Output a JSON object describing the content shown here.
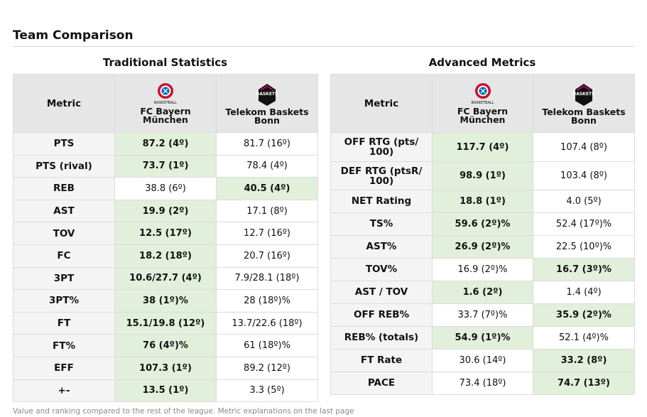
{
  "title": "Team Comparison",
  "footnote": "Value and ranking compared to the rest of the league. Metric explanations on the last page",
  "colors": {
    "highlight": "#e2efdb",
    "header": "#e6e6e6",
    "metric_bg": "#f4f4f4"
  },
  "traditional": {
    "title": "Traditional Statistics",
    "metric_header": "Metric",
    "team1": {
      "name": "FC Bayern München",
      "logo_caption": "BASKETBALL",
      "logo_icon": "fc-bayern-logo"
    },
    "team2": {
      "name": "Telekom Baskets Bonn",
      "logo_caption": "BASKETS",
      "logo_icon": "telekom-baskets-logo"
    },
    "rows": [
      {
        "metric": "PTS",
        "t1": "87.2 (4º)",
        "t2": "81.7 (16º)",
        "best": 1
      },
      {
        "metric": "PTS (rival)",
        "t1": "73.7 (1º)",
        "t2": "78.4 (4º)",
        "best": 1
      },
      {
        "metric": "REB",
        "t1": "38.8 (6º)",
        "t2": "40.5 (4º)",
        "best": 2
      },
      {
        "metric": "AST",
        "t1": "19.9 (2º)",
        "t2": "17.1 (8º)",
        "best": 1
      },
      {
        "metric": "TOV",
        "t1": "12.5 (17º)",
        "t2": "12.7 (16º)",
        "best": 1
      },
      {
        "metric": "FC",
        "t1": "18.2 (18º)",
        "t2": "20.7 (16º)",
        "best": 1
      },
      {
        "metric": "3PT",
        "t1": "10.6/27.7 (4º)",
        "t2": "7.9/28.1 (18º)",
        "best": 1
      },
      {
        "metric": "3PT%",
        "t1": "38 (1º)%",
        "t2": "28 (18º)%",
        "best": 1
      },
      {
        "metric": "FT",
        "t1": "15.1/19.8 (12º)",
        "t2": "13.7/22.6 (18º)",
        "best": 1
      },
      {
        "metric": "FT%",
        "t1": "76 (4º)%",
        "t2": "61 (18º)%",
        "best": 1
      },
      {
        "metric": "EFF",
        "t1": "107.3 (1º)",
        "t2": "89.2 (12º)",
        "best": 1
      },
      {
        "metric": "+-",
        "t1": "13.5 (1º)",
        "t2": "3.3 (5º)",
        "best": 1
      }
    ]
  },
  "advanced": {
    "title": "Advanced Metrics",
    "metric_header": "Metric",
    "team1": {
      "name": "FC Bayern München",
      "logo_caption": "BASKETBALL",
      "logo_icon": "fc-bayern-logo"
    },
    "team2": {
      "name": "Telekom Baskets Bonn",
      "logo_caption": "BASKETS",
      "logo_icon": "telekom-baskets-logo"
    },
    "rows": [
      {
        "metric": "OFF RTG (pts/ 100)",
        "t1": "117.7 (4º)",
        "t2": "107.4 (8º)",
        "best": 1
      },
      {
        "metric": "DEF RTG (ptsR/ 100)",
        "t1": "98.9 (1º)",
        "t2": "103.4 (8º)",
        "best": 1
      },
      {
        "metric": "NET Rating",
        "t1": "18.8 (1º)",
        "t2": "4.0 (5º)",
        "best": 1
      },
      {
        "metric": "TS%",
        "t1": "59.6 (2º)%",
        "t2": "52.4 (17º)%",
        "best": 1
      },
      {
        "metric": "AST%",
        "t1": "26.9 (2º)%",
        "t2": "22.5 (10º)%",
        "best": 1
      },
      {
        "metric": "TOV%",
        "t1": "16.9 (2º)%",
        "t2": "16.7 (3º)%",
        "best": 2
      },
      {
        "metric": "AST / TOV",
        "t1": "1.6 (2º)",
        "t2": "1.4 (4º)",
        "best": 1
      },
      {
        "metric": "OFF REB%",
        "t1": "33.7 (7º)%",
        "t2": "35.9 (2º)%",
        "best": 2
      },
      {
        "metric": "REB% (totals)",
        "t1": "54.9 (1º)%",
        "t2": "52.1 (4º)%",
        "best": 1
      },
      {
        "metric": "FT Rate",
        "t1": "30.6 (14º)",
        "t2": "33.2 (8º)",
        "best": 2
      },
      {
        "metric": "PACE",
        "t1": "73.4 (18º)",
        "t2": "74.7 (13º)",
        "best": 2
      }
    ]
  }
}
